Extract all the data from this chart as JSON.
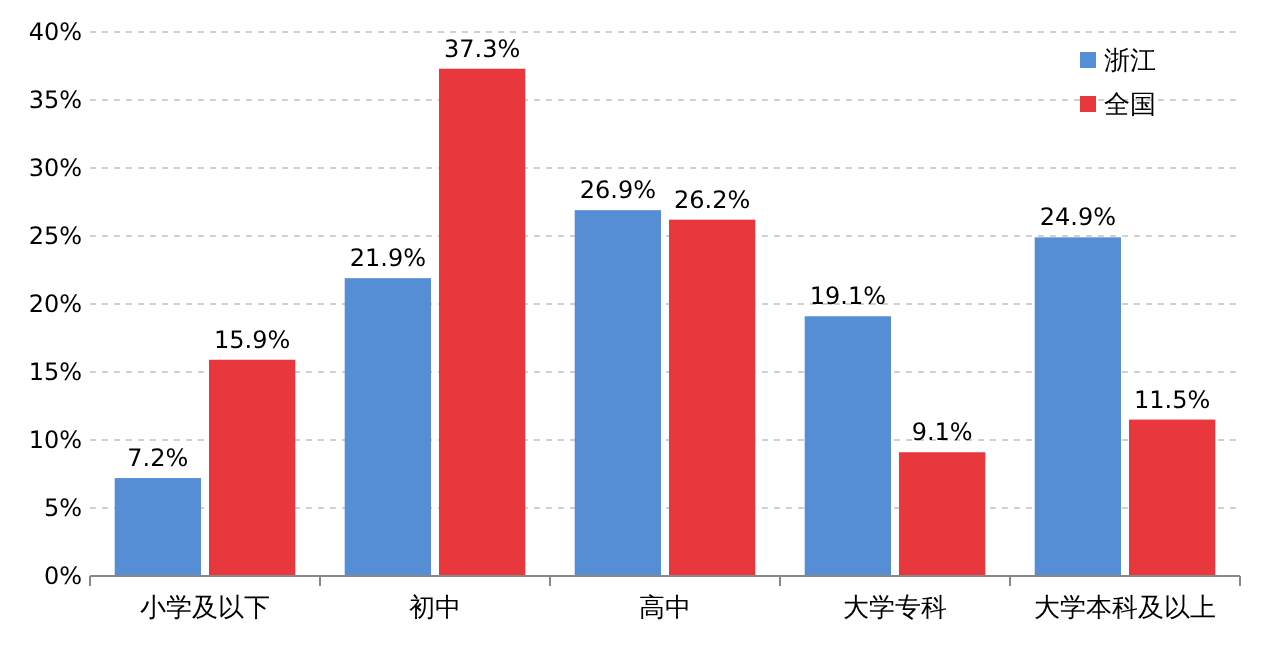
{
  "chart_data": {
    "type": "bar",
    "categories": [
      "小学及以下",
      "初中",
      "高中",
      "大学专科",
      "大学本科及以上"
    ],
    "series": [
      {
        "name": "浙江",
        "color": "#558ed5",
        "values": [
          7.2,
          21.9,
          26.9,
          19.1,
          24.9
        ]
      },
      {
        "name": "全国",
        "color": "#e8383d",
        "values": [
          15.9,
          37.3,
          26.2,
          9.1,
          11.5
        ]
      }
    ],
    "ylim": [
      0,
      40
    ],
    "yticks": [
      {
        "value": 0,
        "label": "0%"
      },
      {
        "value": 5,
        "label": "5%"
      },
      {
        "value": 10,
        "label": "10%"
      },
      {
        "value": 15,
        "label": "15%"
      },
      {
        "value": 20,
        "label": "20%"
      },
      {
        "value": 25,
        "label": "25%"
      },
      {
        "value": 30,
        "label": "30%"
      },
      {
        "value": 35,
        "label": "35%"
      },
      {
        "value": 40,
        "label": "40%"
      }
    ],
    "value_labels": [
      [
        "7.2%",
        "21.9%",
        "26.9%",
        "19.1%",
        "24.9%"
      ],
      [
        "15.9%",
        "37.3%",
        "26.2%",
        "9.1%",
        "11.5%"
      ]
    ],
    "grid": "y",
    "legend": "top right"
  }
}
